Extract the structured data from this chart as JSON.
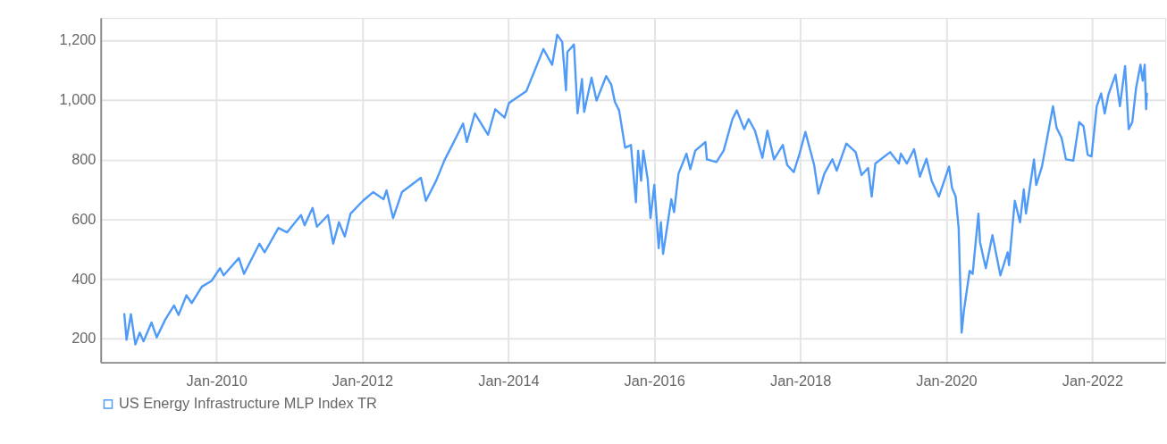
{
  "chart_data": {
    "type": "line",
    "grid": true,
    "legend": "bottom",
    "marker": "none",
    "line_style": "solid",
    "xlim": [
      "2008-06-01",
      "2023-01-01"
    ],
    "xticks": [
      {
        "value": "2010-01-01",
        "label": "Jan-2010"
      },
      {
        "value": "2012-01-01",
        "label": "Jan-2012"
      },
      {
        "value": "2014-01-01",
        "label": "Jan-2014"
      },
      {
        "value": "2016-01-01",
        "label": "Jan-2016"
      },
      {
        "value": "2018-01-01",
        "label": "Jan-2018"
      },
      {
        "value": "2020-01-01",
        "label": "Jan-2020"
      },
      {
        "value": "2022-01-01",
        "label": "Jan-2022"
      }
    ],
    "ylim": [
      120,
      1275
    ],
    "yticks": [
      {
        "value": 200,
        "label": "200"
      },
      {
        "value": 400,
        "label": "400"
      },
      {
        "value": 600,
        "label": "600"
      },
      {
        "value": 800,
        "label": "800"
      },
      {
        "value": 1000,
        "label": "1,000"
      },
      {
        "value": 1200,
        "label": "1,200"
      }
    ],
    "x": [
      "2008-09-27",
      "2008-10-08",
      "2008-10-30",
      "2008-11-21",
      "2008-12-13",
      "2009-01-01",
      "2009-02-10",
      "2009-03-08",
      "2009-04-20",
      "2009-06-03",
      "2009-06-25",
      "2009-08-04",
      "2009-08-30",
      "2009-10-20",
      "2009-12-07",
      "2010-01-19",
      "2010-02-06",
      "2010-04-23",
      "2010-05-19",
      "2010-08-04",
      "2010-08-30",
      "2010-11-07",
      "2010-12-20",
      "2011-02-28",
      "2011-03-18",
      "2011-04-27",
      "2011-05-19",
      "2011-07-13",
      "2011-08-08",
      "2011-09-06",
      "2011-10-05",
      "2011-11-03",
      "2012-01-04",
      "2012-02-24",
      "2012-04-16",
      "2012-05-01",
      "2012-06-03",
      "2012-07-17",
      "2012-10-20",
      "2012-11-14",
      "2013-01-04",
      "2013-02-17",
      "2013-03-26",
      "2013-05-19",
      "2013-06-07",
      "2013-07-17",
      "2013-09-21",
      "2013-10-27",
      "2013-12-13",
      "2014-01-04",
      "2014-04-01",
      "2014-06-25",
      "2014-08-08",
      "2014-09-02",
      "2014-09-27",
      "2014-10-16",
      "2014-10-23",
      "2014-11-25",
      "2014-12-13",
      "2015-01-04",
      "2015-01-15",
      "2015-02-21",
      "2015-03-18",
      "2015-05-05",
      "2015-05-31",
      "2015-06-18",
      "2015-07-09",
      "2015-08-08",
      "2015-09-06",
      "2015-10-01",
      "2015-10-12",
      "2015-10-27",
      "2015-11-07",
      "2015-11-29",
      "2015-12-13",
      "2016-01-01",
      "2016-01-23",
      "2016-02-03",
      "2016-02-14",
      "2016-03-26",
      "2016-04-09",
      "2016-05-01",
      "2016-06-10",
      "2016-06-29",
      "2016-07-24",
      "2016-09-13",
      "2016-09-20",
      "2016-11-07",
      "2016-12-13",
      "2017-01-26",
      "2017-02-17",
      "2017-03-26",
      "2017-04-17",
      "2017-05-19",
      "2017-06-25",
      "2017-07-20",
      "2017-08-22",
      "2017-10-05",
      "2017-10-27",
      "2017-11-29",
      "2017-12-28",
      "2018-01-26",
      "2018-03-11",
      "2018-04-01",
      "2018-05-01",
      "2018-06-10",
      "2018-07-02",
      "2018-08-19",
      "2018-10-05",
      "2018-11-03",
      "2018-12-06",
      "2018-12-24",
      "2019-01-11",
      "2019-03-26",
      "2019-05-09",
      "2019-05-19",
      "2019-06-18",
      "2019-07-24",
      "2019-08-22",
      "2019-09-24",
      "2019-10-20",
      "2019-11-25",
      "2020-01-15",
      "2020-01-30",
      "2020-02-17",
      "2020-03-03",
      "2020-03-18",
      "2020-03-29",
      "2020-04-27",
      "2020-05-12",
      "2020-06-10",
      "2020-06-18",
      "2020-07-17",
      "2020-08-19",
      "2020-09-28",
      "2020-11-03",
      "2020-11-10",
      "2020-12-09",
      "2021-01-04",
      "2021-01-23",
      "2021-02-03",
      "2021-03-15",
      "2021-03-26",
      "2021-04-24",
      "2021-06-18",
      "2021-07-06",
      "2021-07-31",
      "2021-08-22",
      "2021-09-28",
      "2021-10-27",
      "2021-11-18",
      "2021-12-09",
      "2021-12-28",
      "2022-01-23",
      "2022-02-14",
      "2022-03-04",
      "2022-03-22",
      "2022-04-27",
      "2022-05-19",
      "2022-06-14",
      "2022-07-02",
      "2022-07-20",
      "2022-08-08",
      "2022-08-30",
      "2022-09-10",
      "2022-09-20",
      "2022-09-27",
      "2022-10-01"
    ],
    "series": [
      {
        "name": "US Energy Infrastructure MLP Index TR",
        "color": "#4f9bf7",
        "values": [
          282,
          196,
          282,
          180,
          220,
          191,
          254,
          204,
          264,
          311,
          279,
          345,
          319,
          374,
          393,
          436,
          412,
          470,
          417,
          518,
          489,
          571,
          556,
          614,
          580,
          638,
          575,
          614,
          518,
          590,
          542,
          619,
          662,
          691,
          667,
          697,
          604,
          691,
          739,
          662,
          729,
          801,
          849,
          921,
          859,
          955,
          883,
          969,
          941,
          990,
          1030,
          1171,
          1118,
          1219,
          1195,
          1032,
          1161,
          1186,
          955,
          1070,
          960,
          1075,
          998,
          1080,
          1051,
          993,
          965,
          840,
          849,
          657,
          830,
          729,
          830,
          734,
          604,
          715,
          503,
          590,
          484,
          667,
          624,
          753,
          820,
          768,
          830,
          859,
          801,
          792,
          830,
          936,
          965,
          902,
          936,
          897,
          806,
          897,
          801,
          849,
          782,
          758,
          820,
          893,
          782,
          686,
          753,
          801,
          763,
          854,
          825,
          748,
          772,
          676,
          787,
          825,
          787,
          820,
          787,
          835,
          743,
          803,
          729,
          676,
          777,
          705,
          676,
          571,
          220,
          292,
          427,
          417,
          619,
          523,
          436,
          547,
          412,
          489,
          446,
          662,
          590,
          700,
          619,
          801,
          715,
          777,
          979,
          907,
          873,
          801,
          797,
          926,
          912,
          816,
          811,
          979,
          1022,
          955,
          1017,
          1085,
          979,
          1114,
          902,
          926,
          1041,
          1118,
          1065,
          1118,
          969,
          1022
        ]
      }
    ]
  }
}
